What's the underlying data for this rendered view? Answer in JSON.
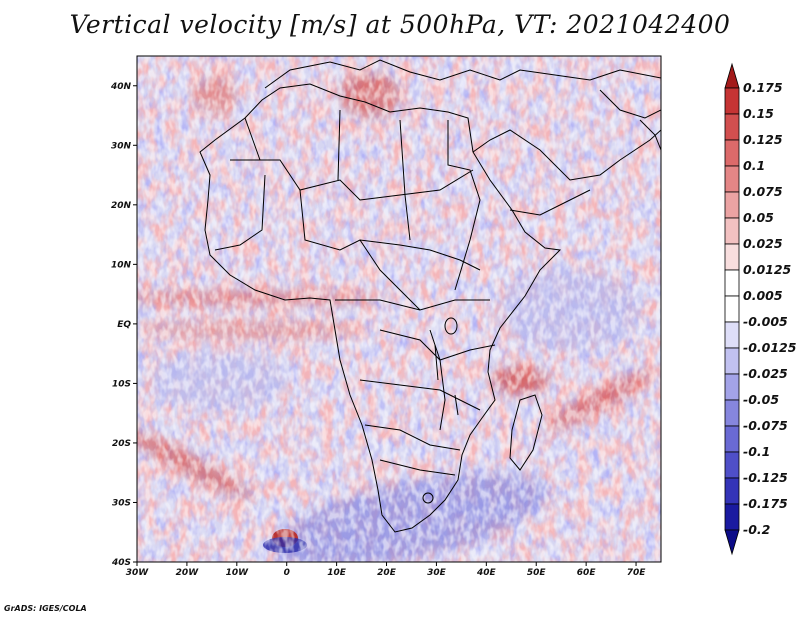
{
  "title": "Vertical velocity [m/s] at 500hPa, VT: 2021042400",
  "credit": "GrADS: IGES/COLA",
  "map": {
    "variable": "Vertical velocity",
    "units": "m/s",
    "level": "500hPa",
    "valid_time": "2021042400",
    "lon_range": [
      -30,
      75
    ],
    "lat_range": [
      -40,
      45
    ],
    "lon_ticks": [
      "30W",
      "20W",
      "10W",
      "0",
      "10E",
      "20E",
      "30E",
      "40E",
      "50E",
      "60E",
      "70E"
    ],
    "lat_ticks": [
      "40N",
      "30N",
      "20N",
      "10N",
      "EQ",
      "10S",
      "20S",
      "30S",
      "40S"
    ]
  },
  "colorbar": {
    "labels": [
      "0.175",
      "0.15",
      "0.125",
      "0.1",
      "0.075",
      "0.05",
      "0.025",
      "0.0125",
      "0.005",
      "-0.005",
      "-0.0125",
      "-0.025",
      "-0.05",
      "-0.075",
      "-0.1",
      "-0.125",
      "-0.175",
      "-0.2"
    ],
    "colors": [
      "#a31a1a",
      "#c53434",
      "#d24f4f",
      "#dc6a6a",
      "#e48686",
      "#eba3a3",
      "#f2c1c1",
      "#f8dede",
      "#ffffff",
      "#ffffff",
      "#dedef8",
      "#c1c1f0",
      "#a3a3e8",
      "#8686de",
      "#6a6ad4",
      "#4f4fc8",
      "#3434b8",
      "#1a1aa0",
      "#0c0c88"
    ]
  }
}
